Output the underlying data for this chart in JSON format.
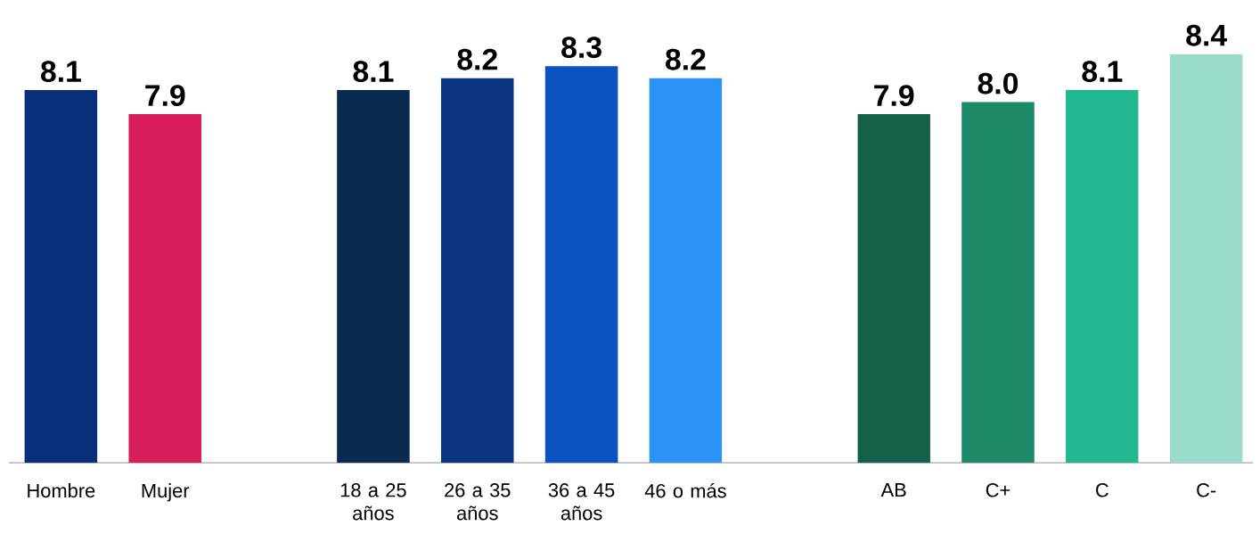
{
  "chart_data": {
    "type": "bar",
    "categories": [
      "Hombre",
      "Mujer",
      null,
      "18 a 25 años",
      "26 a 35 años",
      "36 a 45 años",
      "46 o más",
      null,
      "AB",
      "C+",
      "C",
      "C-"
    ],
    "values": [
      8.1,
      7.9,
      null,
      8.1,
      8.2,
      8.3,
      8.2,
      null,
      7.9,
      8.0,
      8.1,
      8.4
    ],
    "value_labels": [
      "8.1",
      "7.9",
      null,
      "8.1",
      "8.2",
      "8.3",
      "8.2",
      null,
      "7.9",
      "8.0",
      "8.1",
      "8.4"
    ],
    "colors": [
      "#0a2f7a",
      "#d81f5a",
      null,
      "#0a2a4f",
      "#0a3580",
      "#0a52c0",
      "#2b93f5",
      null,
      "#135f4a",
      "#1e8a6a",
      "#22b88f",
      "#9adbcb"
    ],
    "ylim": [
      5,
      8.4
    ]
  }
}
